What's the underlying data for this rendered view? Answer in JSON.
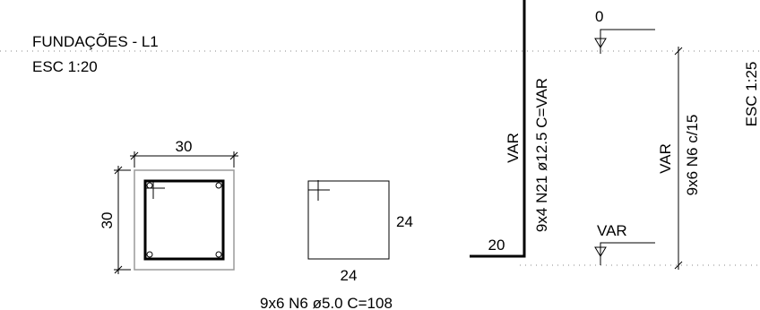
{
  "title": {
    "line1": "FUNDAÇÕES - L1",
    "line2": "ESC 1:20"
  },
  "section": {
    "dim_top": "30",
    "dim_left": "30"
  },
  "stirrup": {
    "dim_right": "24",
    "dim_bottom": "24",
    "spec": "9x6 N6 ø5.0  C=108"
  },
  "longitudinal_bar": {
    "length_label": "VAR",
    "spec": "9x4 N21 ø12.5  C=VAR",
    "hook_label": "20"
  },
  "elevation": {
    "level_top": "0",
    "level_bottom": "VAR",
    "dim_label": "VAR",
    "stirrup_spec": "9x6 N6 c/15",
    "scale": "ESC 1:25"
  }
}
